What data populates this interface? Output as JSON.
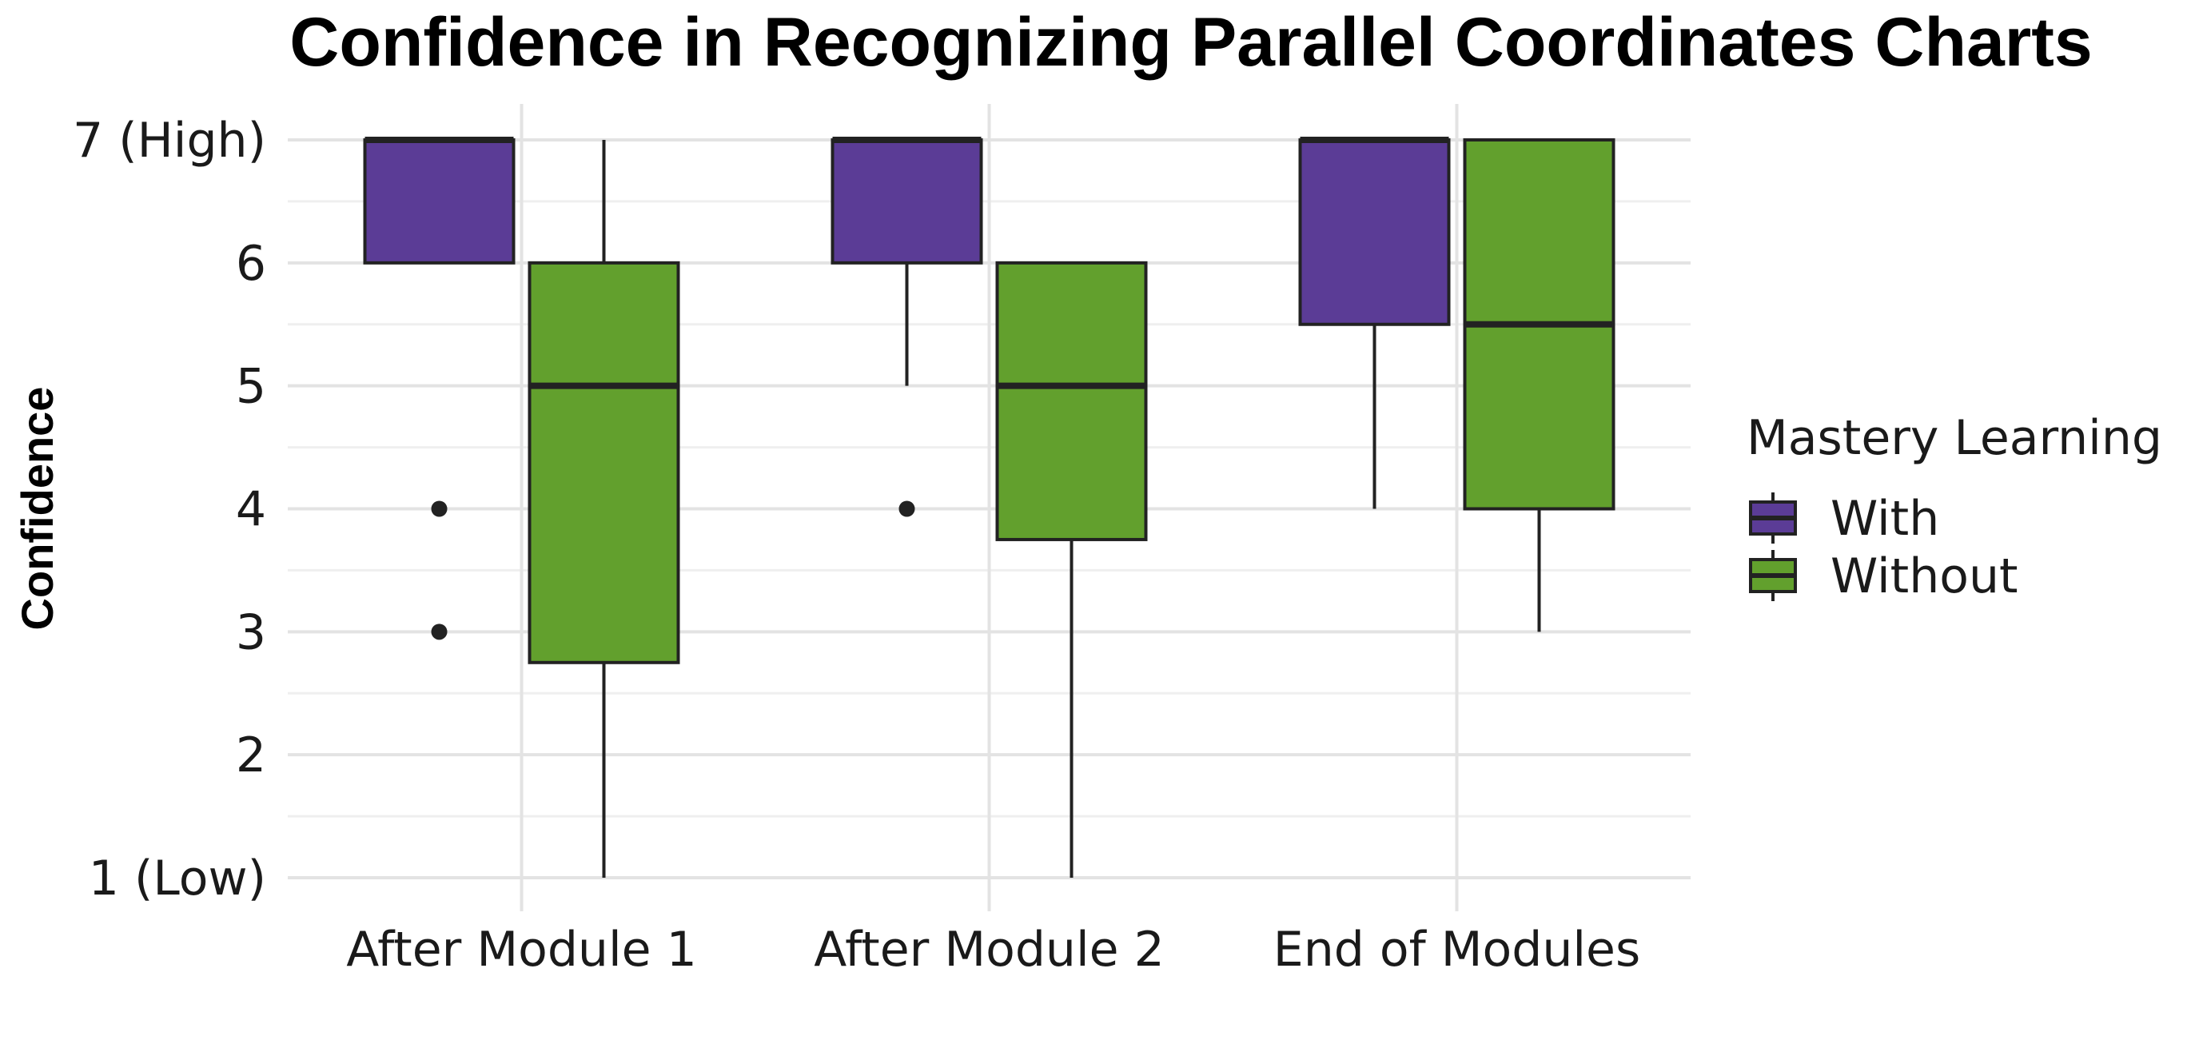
{
  "chart_data": {
    "type": "boxplot",
    "title": "Confidence in Recognizing Parallel Coordinates Charts",
    "xlabel": "",
    "ylabel": "Confidence",
    "ylim": [
      1,
      7
    ],
    "yticks": [
      {
        "value": 1,
        "label": "1 (Low)"
      },
      {
        "value": 2,
        "label": "2"
      },
      {
        "value": 3,
        "label": "3"
      },
      {
        "value": 4,
        "label": "4"
      },
      {
        "value": 5,
        "label": "5"
      },
      {
        "value": 6,
        "label": "6"
      },
      {
        "value": 7,
        "label": "7 (High)"
      }
    ],
    "categories": [
      "After Module 1",
      "After Module 2",
      "End of Modules"
    ],
    "legend": {
      "title": "Mastery Learning",
      "position": "right"
    },
    "grid": true,
    "series": [
      {
        "name": "With",
        "color": "#5b3c96",
        "boxes": [
          {
            "whisker_low": 6,
            "q1": 6,
            "median": 7,
            "q3": 7,
            "whisker_high": 7,
            "outliers": [
              4,
              3
            ]
          },
          {
            "whisker_low": 5,
            "q1": 6,
            "median": 7,
            "q3": 7,
            "whisker_high": 7,
            "outliers": [
              4
            ]
          },
          {
            "whisker_low": 4,
            "q1": 5.5,
            "median": 7,
            "q3": 7,
            "whisker_high": 7,
            "outliers": []
          }
        ]
      },
      {
        "name": "Without",
        "color": "#62a02d",
        "boxes": [
          {
            "whisker_low": 1,
            "q1": 2.75,
            "median": 5,
            "q3": 6,
            "whisker_high": 7,
            "outliers": []
          },
          {
            "whisker_low": 1,
            "q1": 3.75,
            "median": 5,
            "q3": 6,
            "whisker_high": 6,
            "outliers": []
          },
          {
            "whisker_low": 3,
            "q1": 4,
            "median": 5.5,
            "q3": 7,
            "whisker_high": 7,
            "outliers": []
          }
        ]
      }
    ]
  }
}
